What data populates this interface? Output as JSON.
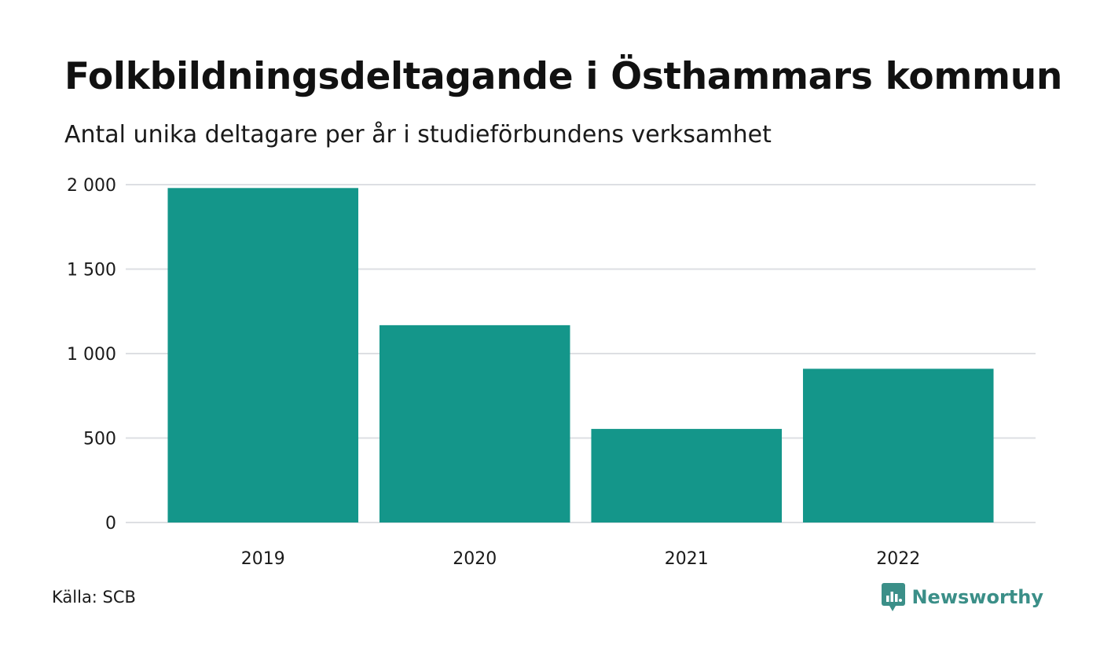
{
  "chart_data": {
    "type": "bar",
    "title": "Folkbildningsdeltagande i Östhammars kommun",
    "subtitle": "Antal unika deltagare per år i studieförbundens verksamhet",
    "categories": [
      "2019",
      "2020",
      "2021",
      "2022"
    ],
    "values": [
      1980,
      1168,
      554,
      910
    ],
    "ylim": [
      0,
      2000
    ],
    "yticks": [
      0,
      500,
      1000,
      1500,
      2000
    ],
    "ytick_labels": [
      "0",
      "500",
      "1 000",
      "1 500",
      "2 000"
    ],
    "grid": true,
    "bar_color": "#14968a",
    "grid_color": "#dddfe3"
  },
  "source": "Källa: SCB",
  "brand": {
    "name": "Newsworthy",
    "icon": "newsworthy-logo-icon",
    "color": "#3b8f88"
  }
}
